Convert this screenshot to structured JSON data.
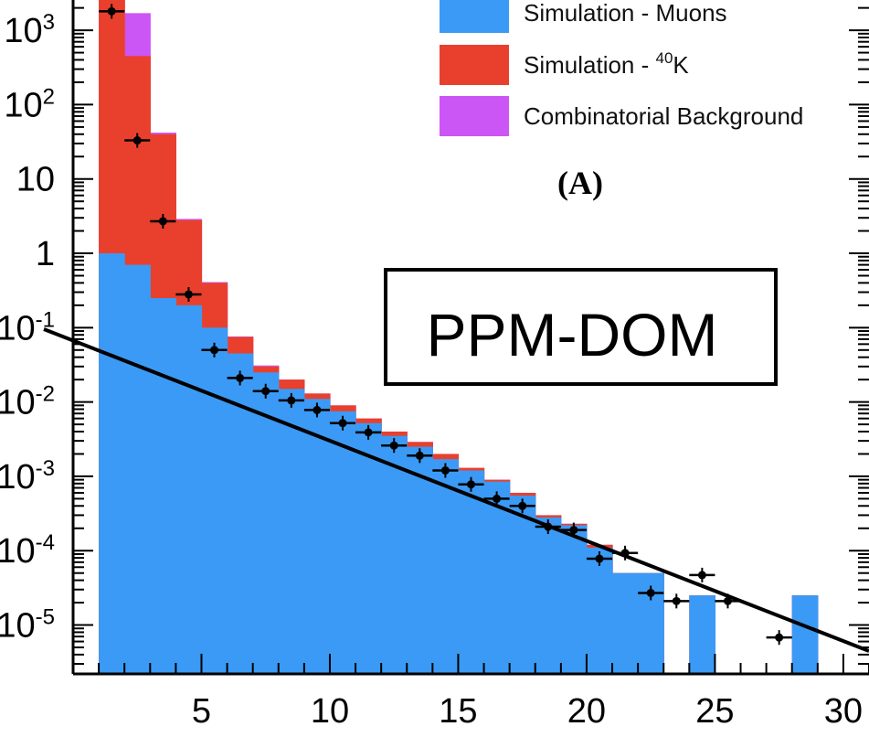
{
  "chart_data": {
    "type": "bar",
    "subtype": "stacked-histogram-log-y",
    "panel_label": "(A)",
    "overlay_label": "PPM-DOM",
    "y_scale": "log",
    "xlim": [
      0,
      31
    ],
    "ylim": [
      2e-06,
      3000
    ],
    "x_ticks": [
      5,
      10,
      15,
      20,
      25,
      30
    ],
    "x_tick_labels": [
      "5",
      "10",
      "15",
      "20",
      "25",
      "30"
    ],
    "y_ticks": [
      1000,
      100,
      10,
      1,
      0.1,
      0.01,
      0.001,
      0.0001,
      1e-05
    ],
    "y_tick_labels": [
      {
        "base": "10",
        "exp": "3"
      },
      {
        "base": "10",
        "exp": "2"
      },
      {
        "base": "10",
        "exp": ""
      },
      {
        "base": "1",
        "exp": ""
      },
      {
        "base": "10",
        "exp": "-1"
      },
      {
        "base": "10",
        "exp": "-2"
      },
      {
        "base": "10",
        "exp": "-3"
      },
      {
        "base": "10",
        "exp": "-4"
      },
      {
        "base": "10",
        "exp": "-5"
      }
    ],
    "legend": [
      {
        "prefix": "Simulation - Muons",
        "sup": "",
        "suffix": "",
        "color": "#3b9af5"
      },
      {
        "prefix": "Simulation - ",
        "sup": "40",
        "suffix": "K",
        "color": "#e8402d"
      },
      {
        "prefix": "Combinatorial Background",
        "sup": "",
        "suffix": "",
        "color": "#cc55f5"
      }
    ],
    "bins": [
      1,
      2,
      3,
      4,
      5,
      6,
      7,
      8,
      9,
      10,
      11,
      12,
      13,
      14,
      15,
      16,
      17,
      18,
      19,
      20,
      21,
      22,
      23,
      24,
      25,
      26,
      27,
      28,
      29,
      30
    ],
    "series": [
      {
        "name": "Simulation - Muons",
        "color": "#3b9af5",
        "values": [
          1.0,
          0.7,
          0.25,
          0.2,
          0.1,
          0.045,
          0.025,
          0.015,
          0.011,
          0.0075,
          0.0052,
          0.0035,
          0.0025,
          0.0017,
          0.0012,
          0.00085,
          0.00055,
          0.00028,
          0.00022,
          0.00011,
          5e-05,
          5e-05,
          0,
          2.5e-05,
          0,
          0,
          0,
          2.5e-05,
          0,
          0
        ]
      },
      {
        "name": "Simulation - 40K",
        "color": "#e8402d",
        "values": [
          3000,
          450,
          40,
          2.8,
          0.4,
          0.075,
          0.03,
          0.02,
          0.013,
          0.009,
          0.006,
          0.004,
          0.0029,
          0.002,
          0.0013,
          0.0009,
          0.0006,
          0.0003,
          0.00023,
          0.00012,
          5e-05,
          5e-05,
          0,
          2.5e-05,
          0,
          0,
          0,
          2.5e-05,
          0,
          0
        ]
      },
      {
        "name": "Combinatorial Background",
        "color": "#cc55f5",
        "values": [
          3000,
          1700,
          42,
          2.9,
          0.41,
          0.076,
          0.031,
          0.02,
          0.013,
          0.009,
          0.006,
          0.004,
          0.0029,
          0.002,
          0.0013,
          0.0009,
          0.0006,
          0.0003,
          0.00023,
          0.00012,
          5e-05,
          5e-05,
          0,
          2.5e-05,
          0,
          0,
          0,
          2.5e-05,
          0,
          0
        ]
      }
    ],
    "data_points": [
      {
        "x": 1.5,
        "y": 1800
      },
      {
        "x": 2.5,
        "y": 33
      },
      {
        "x": 3.5,
        "y": 2.7
      },
      {
        "x": 4.5,
        "y": 0.28
      },
      {
        "x": 5.5,
        "y": 0.05
      },
      {
        "x": 6.5,
        "y": 0.021
      },
      {
        "x": 7.5,
        "y": 0.014
      },
      {
        "x": 8.5,
        "y": 0.0105
      },
      {
        "x": 9.5,
        "y": 0.0078
      },
      {
        "x": 10.5,
        "y": 0.0052
      },
      {
        "x": 11.5,
        "y": 0.0039
      },
      {
        "x": 12.5,
        "y": 0.0026
      },
      {
        "x": 13.5,
        "y": 0.0019
      },
      {
        "x": 14.5,
        "y": 0.0012
      },
      {
        "x": 15.5,
        "y": 0.00078
      },
      {
        "x": 16.5,
        "y": 0.0005
      },
      {
        "x": 17.5,
        "y": 0.0004
      },
      {
        "x": 18.5,
        "y": 0.00021
      },
      {
        "x": 19.5,
        "y": 0.00019
      },
      {
        "x": 20.5,
        "y": 7.8e-05
      },
      {
        "x": 21.5,
        "y": 9.3e-05
      },
      {
        "x": 22.5,
        "y": 2.7e-05
      },
      {
        "x": 23.5,
        "y": 2.1e-05
      },
      {
        "x": 24.5,
        "y": 4.7e-05
      },
      {
        "x": 25.5,
        "y": 2.1e-05
      },
      {
        "x": 27.5,
        "y": 6.8e-06
      }
    ],
    "fit_line": {
      "x": [
        0,
        31
      ],
      "y": [
        0.08,
        3.5e-06
      ]
    }
  }
}
